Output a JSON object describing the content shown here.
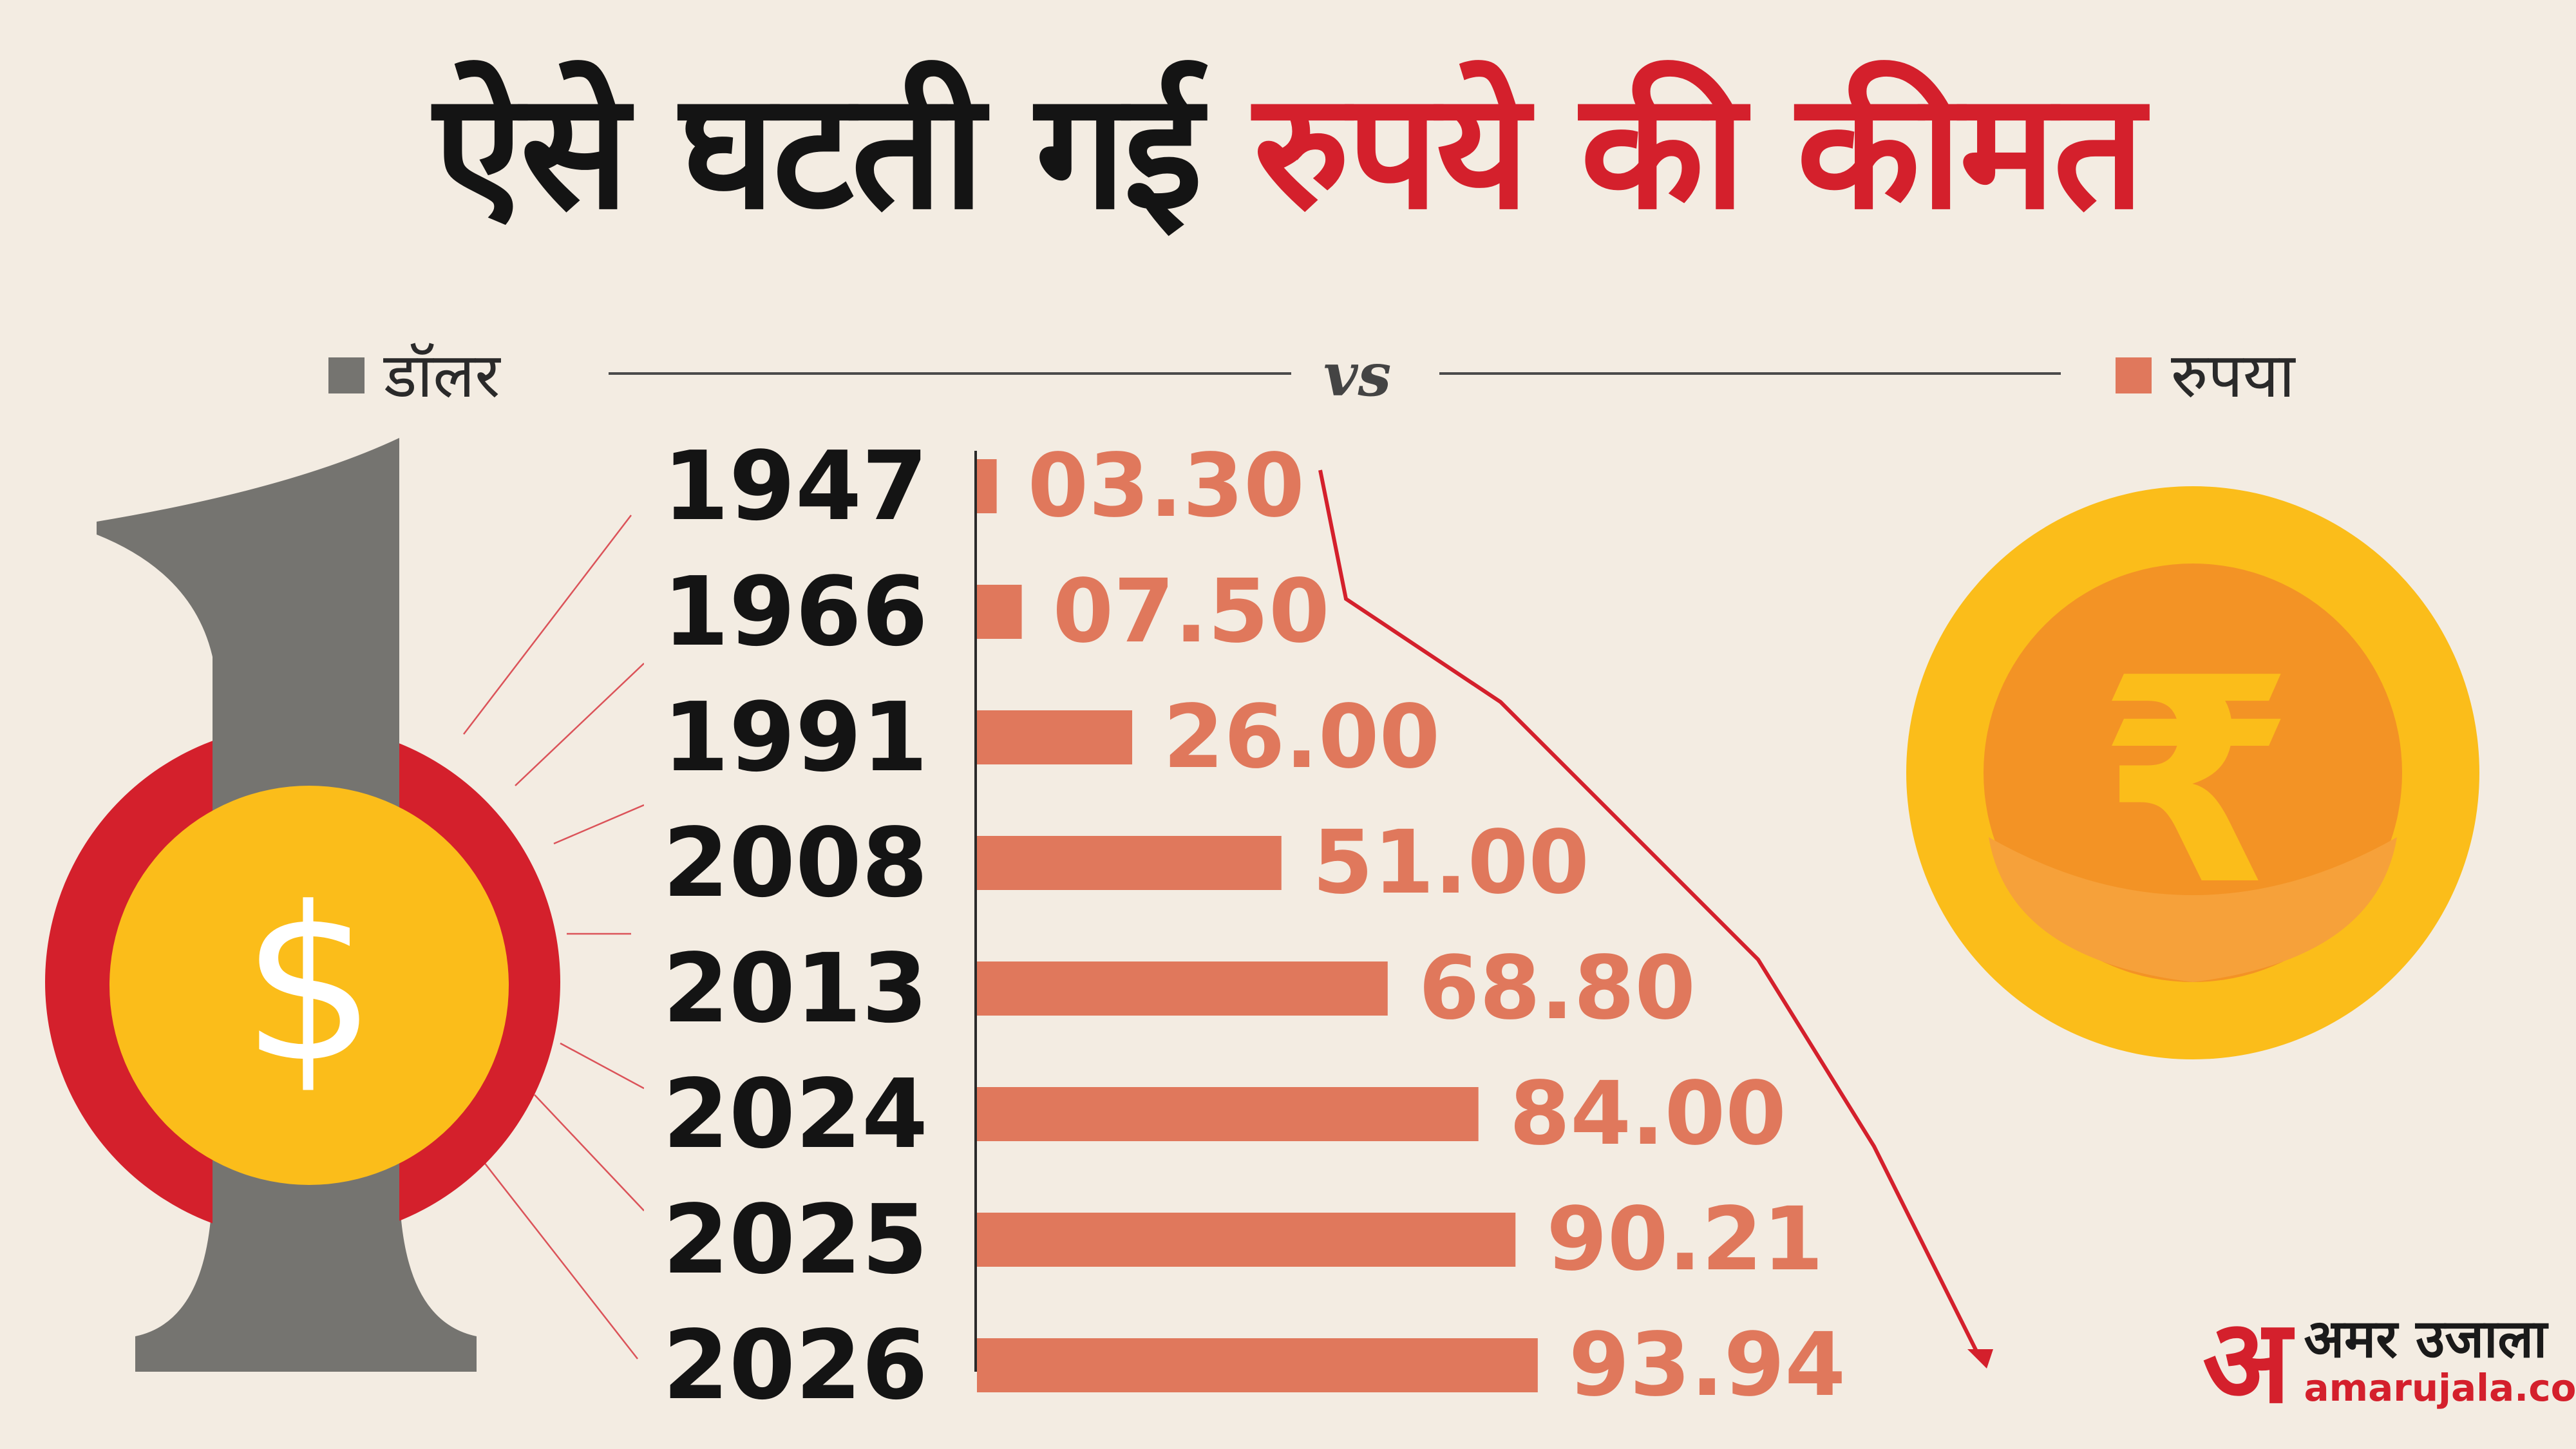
{
  "title": {
    "part1": "ऐसे घटती गई",
    "part2": "रुपये की कीमत"
  },
  "legend": {
    "dollar_label": "डॉलर",
    "vs_label": "vs",
    "rupee_label": "रुपया"
  },
  "dollar_figure": "1",
  "dollar_symbol": "$",
  "rupee_symbol": "₹",
  "brand": {
    "logo_letter": "अ",
    "name": "अमर उजाला",
    "url": "amarujala.com"
  },
  "colors": {
    "dollar": "#757470",
    "rupee": "#e0785c",
    "title_accent": "#d4202c",
    "coin_yellow": "#fbbd1a",
    "coin_orange": "#f39325"
  },
  "icons": [
    "dollar-coin-icon",
    "rupee-coin-icon",
    "downward-arrow-icon"
  ],
  "chart_data": {
    "type": "bar",
    "orientation": "horizontal",
    "categories": [
      "1947",
      "1966",
      "1991",
      "2008",
      "2013",
      "2024",
      "2025",
      "2026"
    ],
    "values": [
      3.3,
      7.5,
      26.0,
      51.0,
      68.8,
      84.0,
      90.21,
      93.94
    ],
    "value_labels": [
      "03.30",
      "07.50",
      "26.00",
      "51.00",
      "68.80",
      "84.00",
      "90.21",
      "93.94"
    ],
    "xlim": [
      0,
      100
    ],
    "grid": false,
    "legend_position": "top"
  }
}
